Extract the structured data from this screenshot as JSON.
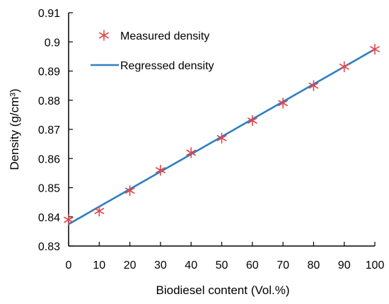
{
  "chart_data": {
    "type": "scatter",
    "title": "",
    "xlabel": "Biodiesel content (Vol.%)",
    "ylabel": "Density (g/cm³)",
    "xlim": [
      0,
      100
    ],
    "ylim": [
      0.83,
      0.91
    ],
    "x_ticks": [
      "0",
      "10",
      "20",
      "30",
      "40",
      "50",
      "60",
      "70",
      "80",
      "90",
      "100"
    ],
    "y_ticks": [
      "0.83",
      "0.84",
      "0.85",
      "0.86",
      "0.87",
      "0.88",
      "0.89",
      "0.9",
      "0.91"
    ],
    "grid": false,
    "legend_position": "top-left",
    "series": [
      {
        "name": "Measured density",
        "kind": "markers",
        "marker": "asterisk",
        "color": "#e0474c",
        "x": [
          0,
          10,
          20,
          30,
          40,
          50,
          60,
          70,
          80,
          90,
          100
        ],
        "y": [
          0.839,
          0.842,
          0.849,
          0.856,
          0.862,
          0.867,
          0.873,
          0.879,
          0.885,
          0.8915,
          0.8975
        ]
      },
      {
        "name": "Regressed density",
        "kind": "line",
        "color": "#2e7fc1",
        "x": [
          0,
          100
        ],
        "y": [
          0.8375,
          0.8975
        ]
      }
    ]
  }
}
